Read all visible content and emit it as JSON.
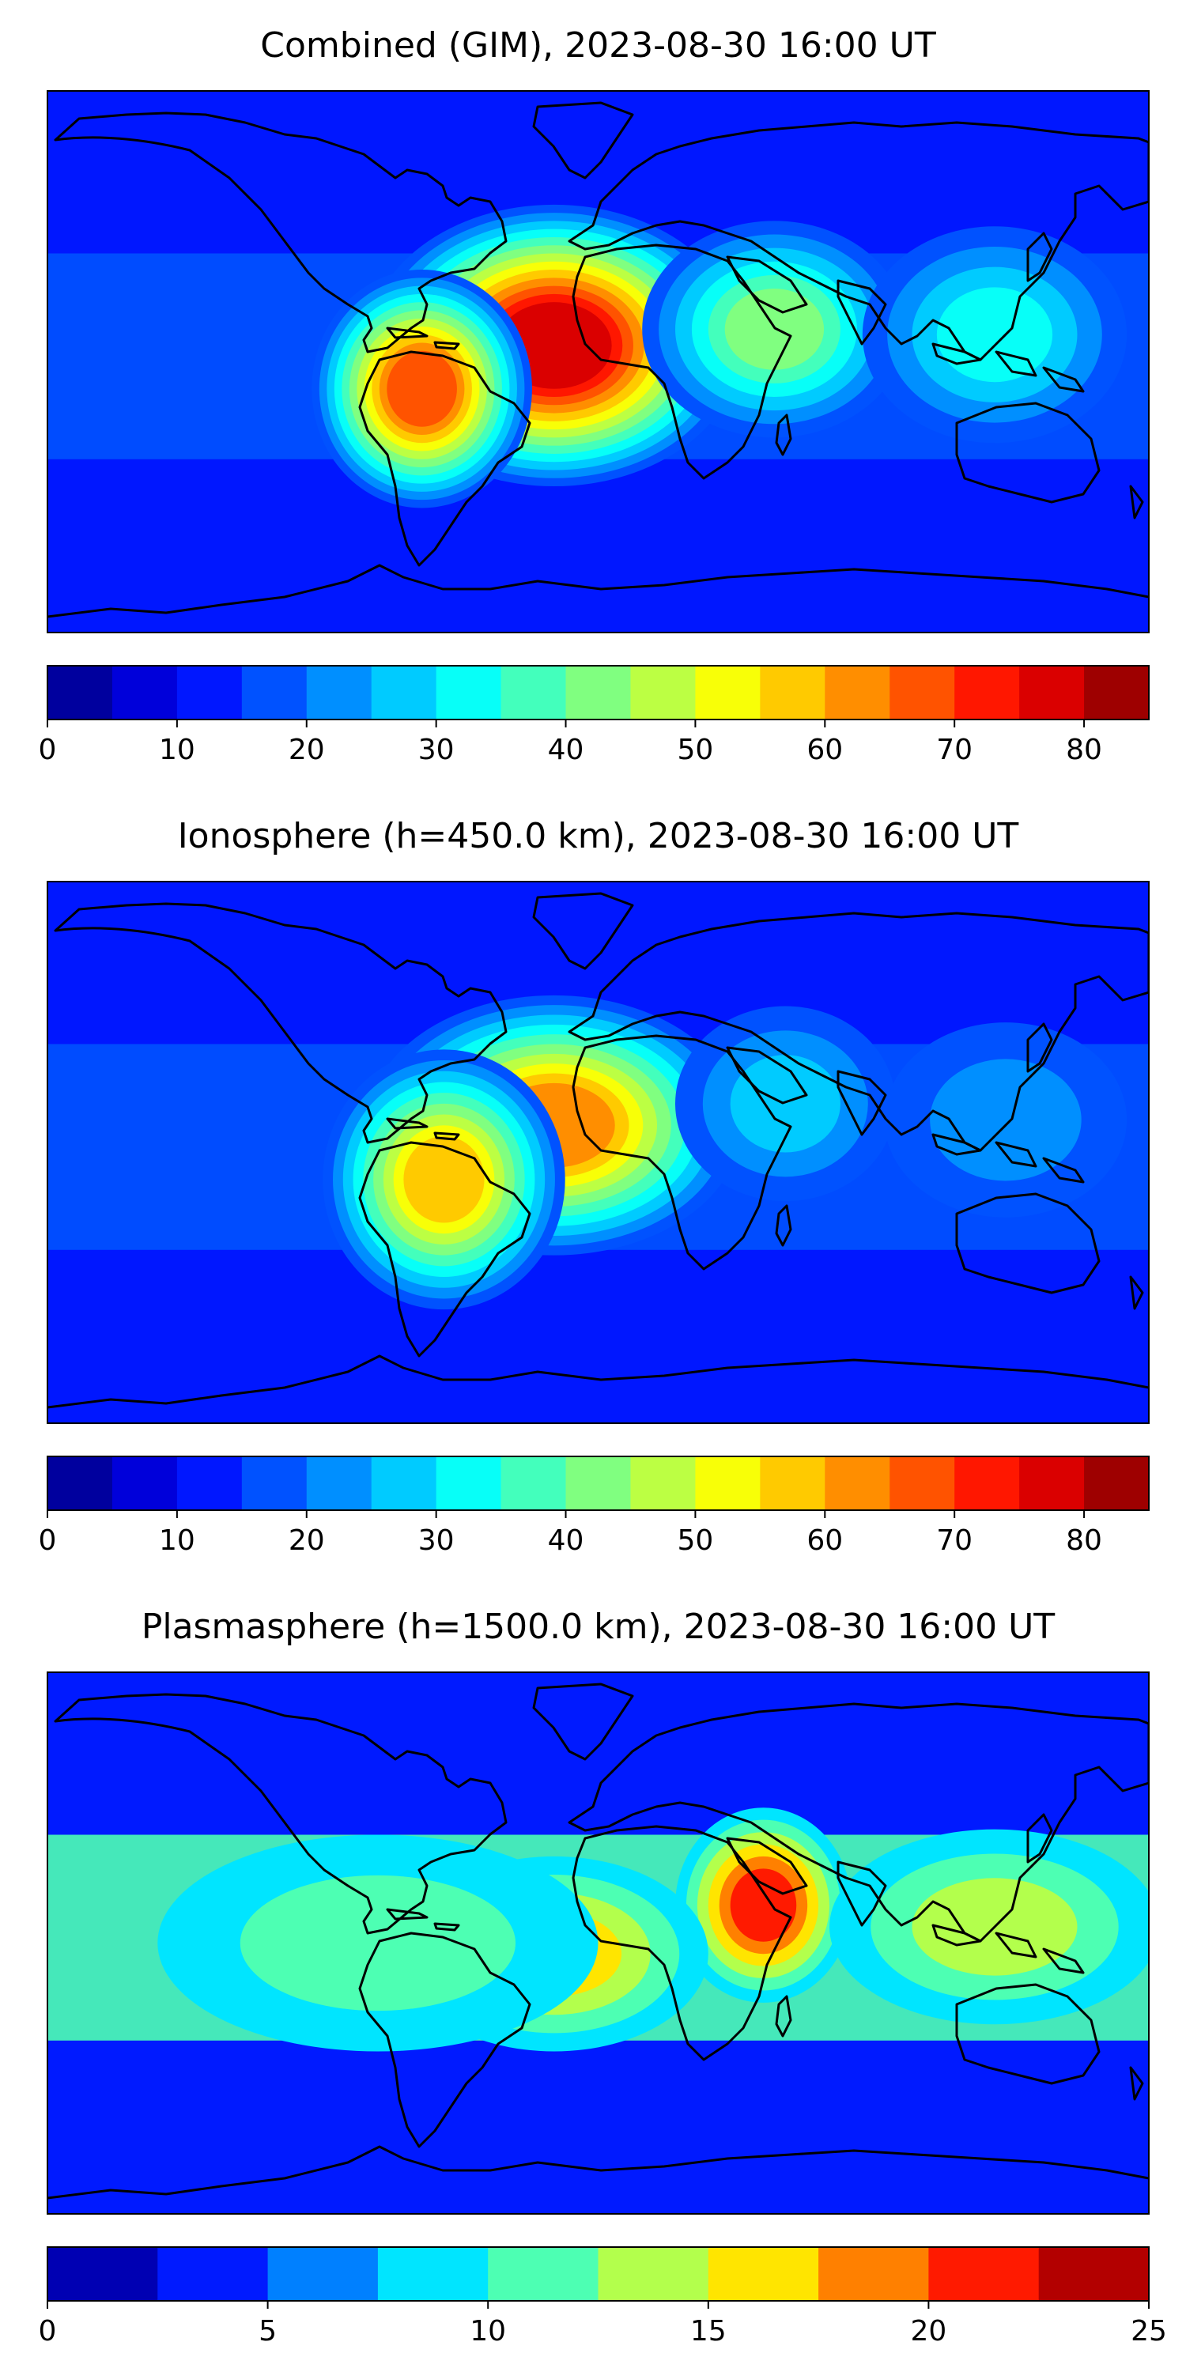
{
  "chart_data": [
    {
      "type": "heatmap",
      "title": "Combined (GIM), 2023-08-30 16:00 UT",
      "colorbar": {
        "min": 0,
        "max": 85,
        "step": 5,
        "ticks": [
          0,
          10,
          20,
          30,
          40,
          50,
          60,
          70,
          80
        ],
        "tick_labels": [
          "0",
          "10",
          "20",
          "30",
          "40",
          "50",
          "60",
          "70",
          "80"
        ]
      },
      "peaks": [
        {
          "region": "tropical Atlantic / West Africa",
          "value": 78
        },
        {
          "region": "northern South America",
          "value": 68
        },
        {
          "region": "Arabian Peninsula / Ethiopia",
          "value": 42
        },
        {
          "region": "Southeast Asia",
          "value": 30
        }
      ]
    },
    {
      "type": "heatmap",
      "title": "Ionosphere  (h=450.0 km), 2023-08-30 16:00 UT",
      "colorbar": {
        "min": 0,
        "max": 85,
        "step": 5,
        "ticks": [
          0,
          10,
          20,
          30,
          40,
          50,
          60,
          70,
          80
        ],
        "tick_labels": [
          "0",
          "10",
          "20",
          "30",
          "40",
          "50",
          "60",
          "70",
          "80"
        ]
      },
      "peaks": [
        {
          "region": "tropical Atlantic / West Africa",
          "value": 62
        },
        {
          "region": "northern South America",
          "value": 57
        },
        {
          "region": "Arabian Peninsula",
          "value": 28
        },
        {
          "region": "Southeast Asia",
          "value": 24
        }
      ]
    },
    {
      "type": "heatmap",
      "title": "Plasmasphere (h=1500.0 km), 2023-08-30 16:00 UT",
      "colorbar": {
        "min": 0,
        "max": 25,
        "step": 2.5,
        "ticks": [
          0,
          5,
          10,
          15,
          20,
          25
        ],
        "tick_labels": [
          "0",
          "5",
          "10",
          "15",
          "20",
          "25"
        ]
      },
      "peaks": [
        {
          "region": "Arabian Peninsula / Horn of Africa",
          "value": 21
        },
        {
          "region": "West Africa",
          "value": 15
        },
        {
          "region": "Southeast Asia",
          "value": 14
        },
        {
          "region": "equatorial Atlantic",
          "value": 12
        }
      ]
    }
  ],
  "colors": {
    "colormap": "jet",
    "map_background": "#0018f5",
    "coastline": "#000000"
  }
}
